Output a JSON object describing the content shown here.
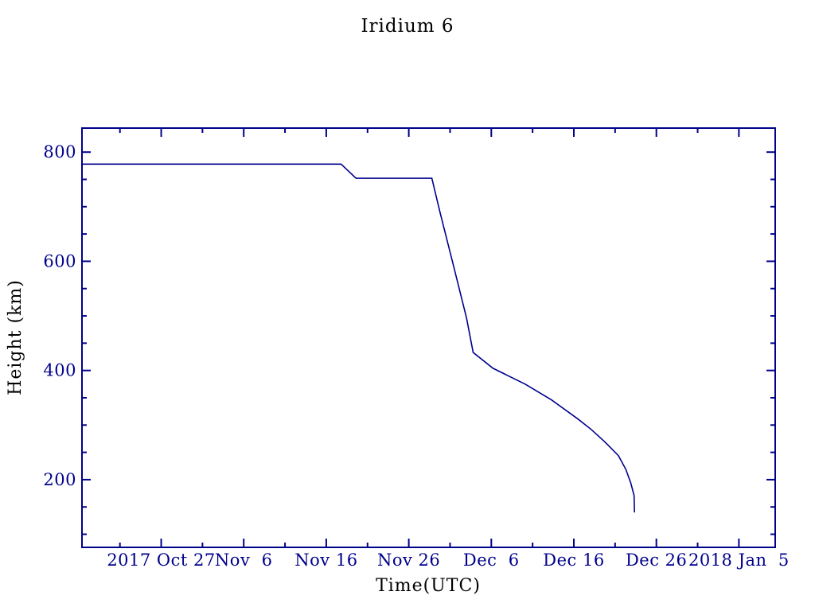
{
  "chart_data": {
    "type": "line",
    "title": "Iridium 6",
    "xlabel": "Time(UTC)",
    "ylabel": "Height (km)",
    "line_color": "#00008B",
    "background_color": "#FFFFFF",
    "grid": "off",
    "legend": "none",
    "x_axis": {
      "unit": "date (UTC), day 0 = 2017 Oct 27",
      "range_days": [
        -9.6,
        74.4
      ],
      "major_ticks": [
        {
          "day": 0,
          "label": "2017 Oct 27"
        },
        {
          "day": 10,
          "label": "Nov  6"
        },
        {
          "day": 20,
          "label": "Nov 16"
        },
        {
          "day": 30,
          "label": "Nov 26"
        },
        {
          "day": 40,
          "label": "Dec  6"
        },
        {
          "day": 50,
          "label": "Dec 16"
        },
        {
          "day": 60,
          "label": "Dec 26"
        },
        {
          "day": 70,
          "label": "2018 Jan  5"
        }
      ],
      "minor_tick_days": [
        -5,
        5,
        15,
        25,
        35,
        45,
        55,
        65
      ]
    },
    "y_axis": {
      "unit": "km",
      "range_km": [
        76,
        844
      ],
      "major_ticks": [
        200,
        400,
        600,
        800
      ],
      "minor_ticks": [
        100,
        150,
        250,
        300,
        350,
        450,
        500,
        550,
        650,
        700,
        750
      ]
    },
    "series": [
      {
        "name": "Iridium 6 height",
        "points_day_km": [
          [
            -9.6,
            778
          ],
          [
            21.8,
            778
          ],
          [
            23.6,
            752
          ],
          [
            32.8,
            752
          ],
          [
            33.8,
            689
          ],
          [
            35.4,
            593
          ],
          [
            37.0,
            496
          ],
          [
            37.8,
            433
          ],
          [
            40.2,
            404
          ],
          [
            44.1,
            375
          ],
          [
            47.3,
            346
          ],
          [
            50.5,
            311
          ],
          [
            52.1,
            292
          ],
          [
            53.7,
            270
          ],
          [
            55.4,
            244
          ],
          [
            56.3,
            219
          ],
          [
            56.9,
            194
          ],
          [
            57.3,
            171
          ],
          [
            57.35,
            140
          ]
        ]
      }
    ]
  }
}
